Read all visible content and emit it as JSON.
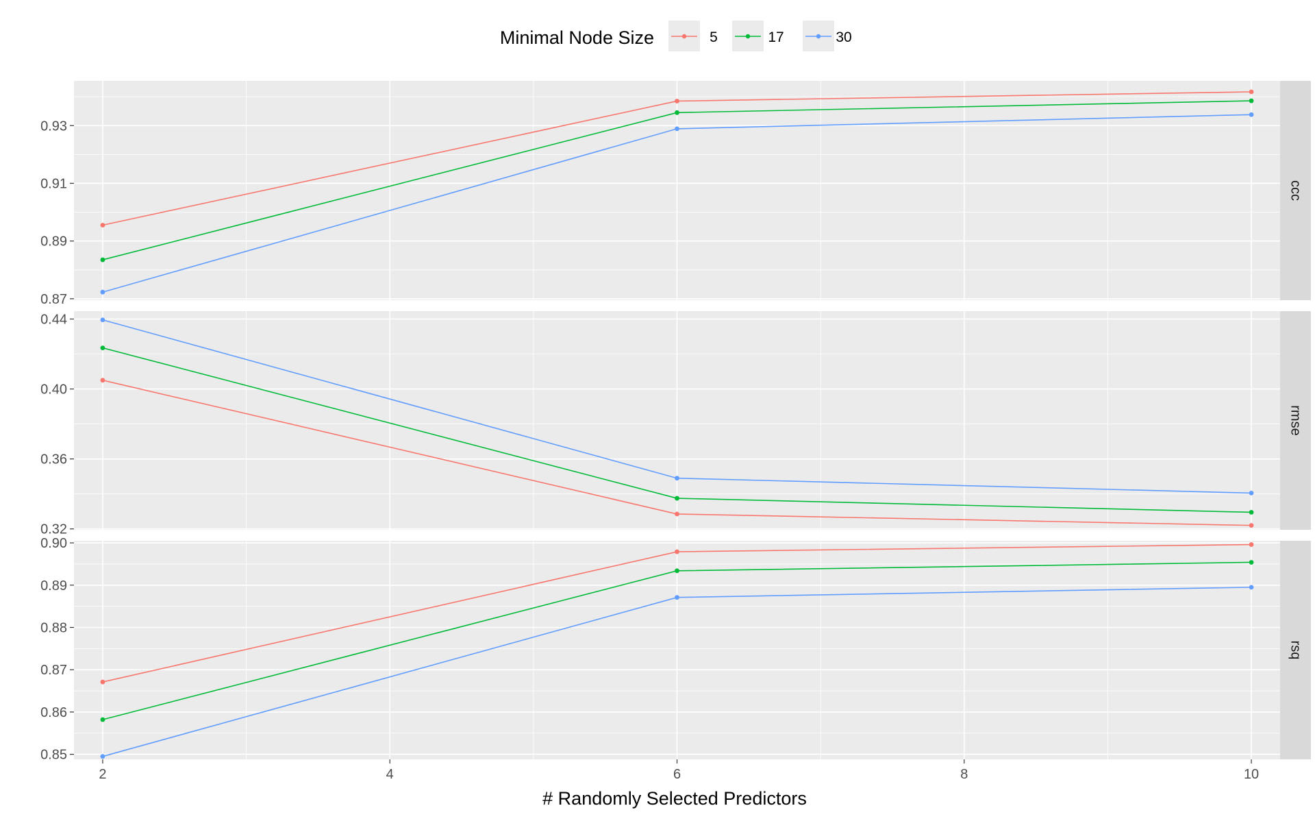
{
  "chart_data": {
    "type": "line",
    "title": "",
    "xlabel": "# Randomly Selected Predictors",
    "ylabel": "",
    "x": [
      2,
      6,
      10
    ],
    "xlim": [
      1.8,
      10.2
    ],
    "x_ticks": [
      2,
      4,
      6,
      8,
      10
    ],
    "x_tick_labels": [
      "2",
      "4",
      "6",
      "8",
      "10"
    ],
    "grid": true,
    "legend": {
      "title": "Minimal Node Size",
      "position": "top",
      "entries": [
        {
          "label": "5",
          "color": "#F8766D"
        },
        {
          "label": "17",
          "color": "#00BA38"
        },
        {
          "label": "30",
          "color": "#619CFF"
        }
      ]
    },
    "facets": [
      {
        "strip": "ccc",
        "ylim": [
          0.8695,
          0.9455
        ],
        "y_ticks": [
          0.87,
          0.89,
          0.91,
          0.93
        ],
        "y_tick_labels": [
          "0.87",
          "0.89",
          "0.91",
          "0.93"
        ],
        "series": [
          {
            "name": "5",
            "color": "#F8766D",
            "values": [
              0.8955,
              0.9385,
              0.9417
            ]
          },
          {
            "name": "17",
            "color": "#00BA38",
            "values": [
              0.8835,
              0.9345,
              0.9386
            ]
          },
          {
            "name": "30",
            "color": "#619CFF",
            "values": [
              0.8723,
              0.9289,
              0.9338
            ]
          }
        ]
      },
      {
        "strip": "rmse",
        "ylim": [
          0.3195,
          0.4445
        ],
        "y_ticks": [
          0.32,
          0.36,
          0.4,
          0.44
        ],
        "y_tick_labels": [
          "0.32",
          "0.36",
          "0.40",
          "0.44"
        ],
        "series": [
          {
            "name": "5",
            "color": "#F8766D",
            "values": [
              0.405,
              0.3285,
              0.322
            ]
          },
          {
            "name": "17",
            "color": "#00BA38",
            "values": [
              0.4235,
              0.3375,
              0.3295
            ]
          },
          {
            "name": "30",
            "color": "#619CFF",
            "values": [
              0.4395,
              0.349,
              0.3405
            ]
          }
        ]
      },
      {
        "strip": "rsq",
        "ylim": [
          0.8488,
          0.9005
        ],
        "y_ticks": [
          0.85,
          0.86,
          0.87,
          0.88,
          0.89,
          0.9
        ],
        "y_tick_labels": [
          "0.85",
          "0.86",
          "0.87",
          "0.88",
          "0.89",
          "0.90"
        ],
        "series": [
          {
            "name": "5",
            "color": "#F8766D",
            "values": [
              0.8671,
              0.8979,
              0.8996
            ]
          },
          {
            "name": "17",
            "color": "#00BA38",
            "values": [
              0.8582,
              0.8934,
              0.8954
            ]
          },
          {
            "name": "30",
            "color": "#619CFF",
            "values": [
              0.8495,
              0.8871,
              0.8895
            ]
          }
        ]
      }
    ]
  }
}
